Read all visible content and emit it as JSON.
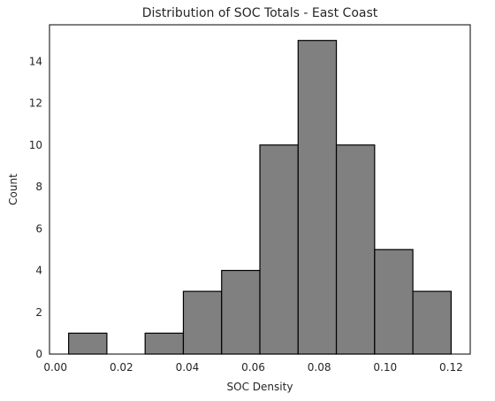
{
  "chart_data": {
    "type": "bar",
    "histogram": true,
    "title": "Distribution of SOC Totals - East Coast",
    "xlabel": "SOC Density",
    "ylabel": "Count",
    "bin_edges": [
      0.004,
      0.0156,
      0.0272,
      0.0388,
      0.0504,
      0.062,
      0.0736,
      0.0852,
      0.0968,
      0.1084,
      0.12
    ],
    "values": [
      1,
      0,
      1,
      3,
      4,
      10,
      15,
      10,
      5,
      3
    ],
    "xlim": [
      -0.0018,
      0.1258
    ],
    "ylim": [
      0,
      15.75
    ],
    "xticks": [
      0.0,
      0.02,
      0.04,
      0.06,
      0.08,
      0.1,
      0.12
    ],
    "xtick_labels": [
      "0.00",
      "0.02",
      "0.04",
      "0.06",
      "0.08",
      "0.10",
      "0.12"
    ],
    "yticks": [
      0,
      2,
      4,
      6,
      8,
      10,
      12,
      14
    ],
    "ytick_labels": [
      "0",
      "2",
      "4",
      "6",
      "8",
      "10",
      "12",
      "14"
    ],
    "bar_color": "#808080",
    "edge_color": "#000000",
    "grid": false,
    "legend": "none"
  }
}
